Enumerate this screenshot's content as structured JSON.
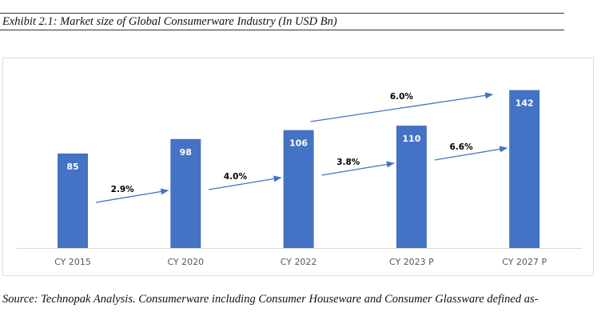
{
  "header": {
    "title": "Exhibit 2.1: Market size of Global Consumerware Industry (In USD Bn)"
  },
  "footer": {
    "source": "Source: Technopak Analysis. Consumerware including Consumer Houseware and Consumer Glassware defined as-"
  },
  "chart_data": {
    "type": "bar",
    "title": "Market size of Global Consumerware Industry (In USD Bn)",
    "xlabel": "",
    "ylabel": "",
    "categories": [
      "CY 2015",
      "CY 2020",
      "CY 2022",
      "CY 2023 P",
      "CY 2027 P"
    ],
    "values": [
      85,
      98,
      106,
      110,
      142
    ],
    "data_labels": [
      "85",
      "98",
      "106",
      "110",
      "142"
    ],
    "ylim": [
      0,
      190
    ],
    "grid": false,
    "legend": "none",
    "bar_color": "#4472C4",
    "arrow_color": "#4472C4",
    "annotations": [
      {
        "label": "2.9%",
        "from": "CY 2015",
        "to": "CY 2020",
        "type": "cagr-arrow"
      },
      {
        "label": "4.0%",
        "from": "CY 2020",
        "to": "CY 2022",
        "type": "cagr-arrow"
      },
      {
        "label": "3.8%",
        "from": "CY 2022",
        "to": "CY 2023 P",
        "type": "cagr-arrow"
      },
      {
        "label": "6.6%",
        "from": "CY 2023 P",
        "to": "CY 2027 P",
        "type": "cagr-arrow"
      },
      {
        "label": "6.0%",
        "from": "CY 2022",
        "to": "CY 2027 P",
        "type": "cagr-arrow"
      }
    ]
  }
}
